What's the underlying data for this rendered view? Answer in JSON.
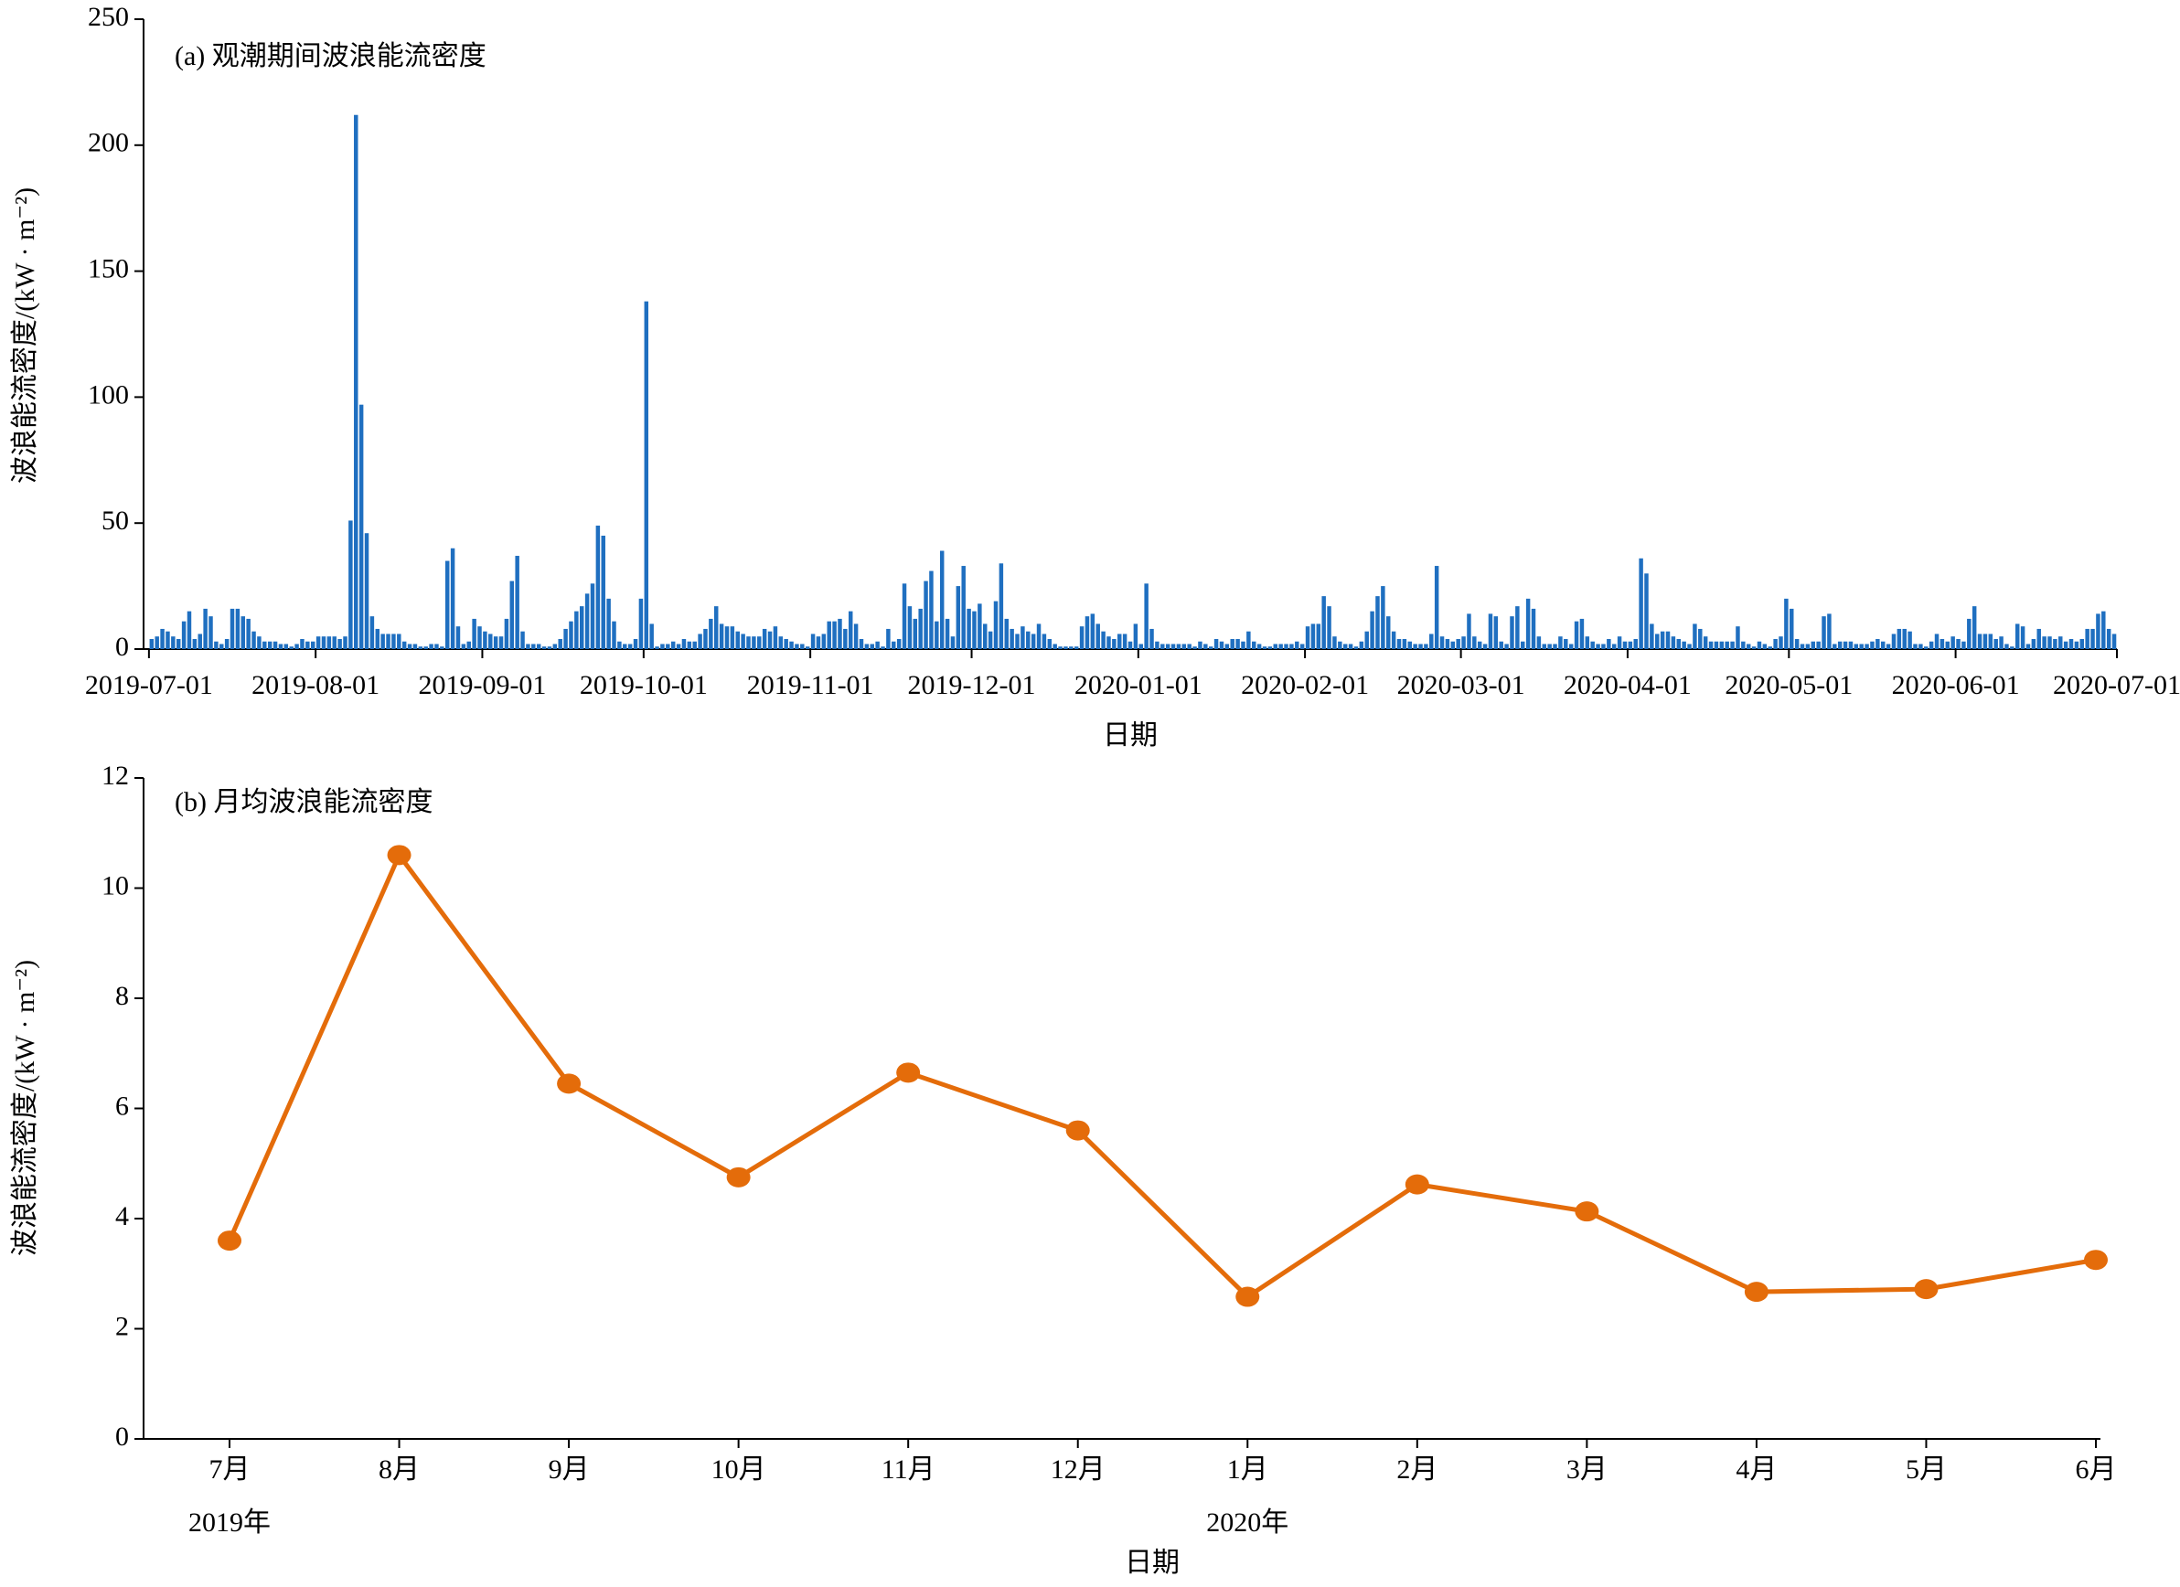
{
  "chart_data": [
    {
      "type": "bar",
      "title": "(a) 观潮期间波浪能流密度",
      "x_label": "日期",
      "y_label": "波浪能流密度/(kW · m⁻²)",
      "color": "#1f6fc0",
      "xlim": [
        "2019-06-30",
        "2020-07-01"
      ],
      "xticks": [
        "2019-07-01",
        "2019-08-01",
        "2019-09-01",
        "2019-10-01",
        "2019-11-01",
        "2019-12-01",
        "2020-01-01",
        "2020-02-01",
        "2020-03-01",
        "2020-04-01",
        "2020-05-01",
        "2020-06-01",
        "2020-07-01"
      ],
      "ylim": [
        0,
        250
      ],
      "yticks": [
        0,
        50,
        100,
        150,
        200,
        250
      ],
      "x": [
        "2019-07-01",
        "2019-07-02",
        "2019-07-03",
        "2019-07-04",
        "2019-07-05",
        "2019-07-06",
        "2019-07-07",
        "2019-07-08",
        "2019-07-09",
        "2019-07-10",
        "2019-07-11",
        "2019-07-12",
        "2019-07-13",
        "2019-07-14",
        "2019-07-15",
        "2019-07-16",
        "2019-07-17",
        "2019-07-18",
        "2019-07-19",
        "2019-07-20",
        "2019-07-21",
        "2019-07-22",
        "2019-07-23",
        "2019-07-24",
        "2019-07-25",
        "2019-07-26",
        "2019-07-27",
        "2019-07-28",
        "2019-07-29",
        "2019-07-30",
        "2019-07-31",
        "2019-08-01",
        "2019-08-02",
        "2019-08-03",
        "2019-08-04",
        "2019-08-05",
        "2019-08-06",
        "2019-08-07",
        "2019-08-08",
        "2019-08-09",
        "2019-08-10",
        "2019-08-11",
        "2019-08-12",
        "2019-08-13",
        "2019-08-14",
        "2019-08-15",
        "2019-08-16",
        "2019-08-17",
        "2019-08-18",
        "2019-08-19",
        "2019-08-20",
        "2019-08-21",
        "2019-08-22",
        "2019-08-23",
        "2019-08-24",
        "2019-08-25",
        "2019-08-26",
        "2019-08-27",
        "2019-08-28",
        "2019-08-29",
        "2019-08-30",
        "2019-08-31",
        "2019-09-01",
        "2019-09-02",
        "2019-09-03",
        "2019-09-04",
        "2019-09-05",
        "2019-09-06",
        "2019-09-07",
        "2019-09-08",
        "2019-09-09",
        "2019-09-10",
        "2019-09-11",
        "2019-09-12",
        "2019-09-13",
        "2019-09-14",
        "2019-09-15",
        "2019-09-16",
        "2019-09-17",
        "2019-09-18",
        "2019-09-19",
        "2019-09-20",
        "2019-09-21",
        "2019-09-22",
        "2019-09-23",
        "2019-09-24",
        "2019-09-25",
        "2019-09-26",
        "2019-09-27",
        "2019-09-28",
        "2019-09-29",
        "2019-09-30",
        "2019-10-01",
        "2019-10-02",
        "2019-10-03",
        "2019-10-04",
        "2019-10-05",
        "2019-10-06",
        "2019-10-07",
        "2019-10-08",
        "2019-10-09",
        "2019-10-10",
        "2019-10-11",
        "2019-10-12",
        "2019-10-13",
        "2019-10-14",
        "2019-10-15",
        "2019-10-16",
        "2019-10-17",
        "2019-10-18",
        "2019-10-19",
        "2019-10-20",
        "2019-10-21",
        "2019-10-22",
        "2019-10-23",
        "2019-10-24",
        "2019-10-25",
        "2019-10-26",
        "2019-10-27",
        "2019-10-28",
        "2019-10-29",
        "2019-10-30",
        "2019-10-31",
        "2019-11-01",
        "2019-11-02",
        "2019-11-03",
        "2019-11-04",
        "2019-11-05",
        "2019-11-06",
        "2019-11-07",
        "2019-11-08",
        "2019-11-09",
        "2019-11-10",
        "2019-11-11",
        "2019-11-12",
        "2019-11-13",
        "2019-11-14",
        "2019-11-15",
        "2019-11-16",
        "2019-11-17",
        "2019-11-18",
        "2019-11-19",
        "2019-11-20",
        "2019-11-21",
        "2019-11-22",
        "2019-11-23",
        "2019-11-24",
        "2019-11-25",
        "2019-11-26",
        "2019-11-27",
        "2019-11-28",
        "2019-11-29",
        "2019-11-30",
        "2019-12-01",
        "2019-12-02",
        "2019-12-03",
        "2019-12-04",
        "2019-12-05",
        "2019-12-06",
        "2019-12-07",
        "2019-12-08",
        "2019-12-09",
        "2019-12-10",
        "2019-12-11",
        "2019-12-12",
        "2019-12-13",
        "2019-12-14",
        "2019-12-15",
        "2019-12-16",
        "2019-12-17",
        "2019-12-18",
        "2019-12-19",
        "2019-12-20",
        "2019-12-21",
        "2019-12-22",
        "2019-12-23",
        "2019-12-24",
        "2019-12-25",
        "2019-12-26",
        "2019-12-27",
        "2019-12-28",
        "2019-12-29",
        "2019-12-30",
        "2019-12-31",
        "2020-01-01",
        "2020-01-02",
        "2020-01-03",
        "2020-01-04",
        "2020-01-05",
        "2020-01-06",
        "2020-01-07",
        "2020-01-08",
        "2020-01-09",
        "2020-01-10",
        "2020-01-11",
        "2020-01-12",
        "2020-01-13",
        "2020-01-14",
        "2020-01-15",
        "2020-01-16",
        "2020-01-17",
        "2020-01-18",
        "2020-01-19",
        "2020-01-20",
        "2020-01-21",
        "2020-01-22",
        "2020-01-23",
        "2020-01-24",
        "2020-01-25",
        "2020-01-26",
        "2020-01-27",
        "2020-01-28",
        "2020-01-29",
        "2020-01-30",
        "2020-01-31",
        "2020-02-01",
        "2020-02-02",
        "2020-02-03",
        "2020-02-04",
        "2020-02-05",
        "2020-02-06",
        "2020-02-07",
        "2020-02-08",
        "2020-02-09",
        "2020-02-10",
        "2020-02-11",
        "2020-02-12",
        "2020-02-13",
        "2020-02-14",
        "2020-02-15",
        "2020-02-16",
        "2020-02-17",
        "2020-02-18",
        "2020-02-19",
        "2020-02-20",
        "2020-02-21",
        "2020-02-22",
        "2020-02-23",
        "2020-02-24",
        "2020-02-25",
        "2020-02-26",
        "2020-02-27",
        "2020-02-28",
        "2020-02-29",
        "2020-03-01",
        "2020-03-02",
        "2020-03-03",
        "2020-03-04",
        "2020-03-05",
        "2020-03-06",
        "2020-03-07",
        "2020-03-08",
        "2020-03-09",
        "2020-03-10",
        "2020-03-11",
        "2020-03-12",
        "2020-03-13",
        "2020-03-14",
        "2020-03-15",
        "2020-03-16",
        "2020-03-17",
        "2020-03-18",
        "2020-03-19",
        "2020-03-20",
        "2020-03-21",
        "2020-03-22",
        "2020-03-23",
        "2020-03-24",
        "2020-03-25",
        "2020-03-26",
        "2020-03-27",
        "2020-03-28",
        "2020-03-29",
        "2020-03-30",
        "2020-03-31",
        "2020-04-01",
        "2020-04-02",
        "2020-04-03",
        "2020-04-04",
        "2020-04-05",
        "2020-04-06",
        "2020-04-07",
        "2020-04-08",
        "2020-04-09",
        "2020-04-10",
        "2020-04-11",
        "2020-04-12",
        "2020-04-13",
        "2020-04-14",
        "2020-04-15",
        "2020-04-16",
        "2020-04-17",
        "2020-04-18",
        "2020-04-19",
        "2020-04-20",
        "2020-04-21",
        "2020-04-22",
        "2020-04-23",
        "2020-04-24",
        "2020-04-25",
        "2020-04-26",
        "2020-04-27",
        "2020-04-28",
        "2020-04-29",
        "2020-04-30",
        "2020-05-01",
        "2020-05-02",
        "2020-05-03",
        "2020-05-04",
        "2020-05-05",
        "2020-05-06",
        "2020-05-07",
        "2020-05-08",
        "2020-05-09",
        "2020-05-10",
        "2020-05-11",
        "2020-05-12",
        "2020-05-13",
        "2020-05-14",
        "2020-05-15",
        "2020-05-16",
        "2020-05-17",
        "2020-05-18",
        "2020-05-19",
        "2020-05-20",
        "2020-05-21",
        "2020-05-22",
        "2020-05-23",
        "2020-05-24",
        "2020-05-25",
        "2020-05-26",
        "2020-05-27",
        "2020-05-28",
        "2020-05-29",
        "2020-05-30",
        "2020-05-31",
        "2020-06-01",
        "2020-06-02",
        "2020-06-03",
        "2020-06-04",
        "2020-06-05",
        "2020-06-06",
        "2020-06-07",
        "2020-06-08",
        "2020-06-09",
        "2020-06-10",
        "2020-06-11",
        "2020-06-12",
        "2020-06-13",
        "2020-06-14",
        "2020-06-15",
        "2020-06-16",
        "2020-06-17",
        "2020-06-18",
        "2020-06-19",
        "2020-06-20",
        "2020-06-21",
        "2020-06-22",
        "2020-06-23",
        "2020-06-24",
        "2020-06-25",
        "2020-06-26",
        "2020-06-27",
        "2020-06-28",
        "2020-06-29",
        "2020-06-30"
      ],
      "values": [
        4,
        5,
        8,
        7,
        5,
        4,
        11,
        15,
        4,
        6,
        16,
        13,
        3,
        2,
        4,
        16,
        16,
        13,
        12,
        7,
        5,
        3,
        3,
        3,
        2,
        2,
        1,
        2,
        4,
        3,
        3,
        5,
        5,
        5,
        5,
        4,
        5,
        51,
        212,
        97,
        46,
        13,
        8,
        6,
        6,
        6,
        6,
        3,
        2,
        2,
        1,
        1,
        2,
        2,
        1,
        35,
        40,
        9,
        2,
        3,
        12,
        9,
        7,
        6,
        5,
        5,
        12,
        27,
        37,
        7,
        2,
        2,
        2,
        1,
        1,
        2,
        4,
        8,
        11,
        15,
        17,
        22,
        26,
        49,
        45,
        20,
        11,
        3,
        2,
        2,
        4,
        20,
        138,
        10,
        1,
        2,
        2,
        3,
        2,
        4,
        3,
        3,
        6,
        8,
        12,
        17,
        10,
        9,
        9,
        7,
        6,
        5,
        5,
        5,
        8,
        7,
        9,
        5,
        4,
        3,
        2,
        2,
        1,
        6,
        5,
        6,
        11,
        11,
        12,
        8,
        15,
        10,
        4,
        2,
        2,
        3,
        1,
        8,
        3,
        4,
        26,
        17,
        12,
        16,
        27,
        31,
        11,
        39,
        12,
        5,
        25,
        33,
        16,
        15,
        18,
        10,
        7,
        19,
        34,
        12,
        8,
        6,
        9,
        7,
        6,
        10,
        6,
        4,
        2,
        1,
        1,
        1,
        1,
        9,
        13,
        14,
        10,
        7,
        5,
        4,
        6,
        6,
        3,
        10,
        2,
        26,
        8,
        3,
        2,
        2,
        2,
        2,
        2,
        2,
        1,
        3,
        2,
        1,
        4,
        3,
        2,
        4,
        4,
        3,
        7,
        3,
        2,
        1,
        1,
        2,
        2,
        2,
        2,
        3,
        2,
        9,
        10,
        10,
        21,
        17,
        5,
        3,
        2,
        2,
        1,
        3,
        7,
        15,
        21,
        25,
        13,
        7,
        4,
        4,
        3,
        2,
        2,
        2,
        6,
        33,
        5,
        4,
        3,
        4,
        5,
        14,
        5,
        3,
        2,
        14,
        13,
        3,
        2,
        13,
        17,
        3,
        20,
        16,
        5,
        2,
        2,
        2,
        5,
        4,
        2,
        11,
        12,
        5,
        3,
        2,
        2,
        4,
        2,
        5,
        3,
        3,
        4,
        36,
        30,
        10,
        6,
        7,
        7,
        5,
        4,
        3,
        2,
        10,
        8,
        5,
        3,
        3,
        3,
        3,
        3,
        9,
        3,
        2,
        1,
        3,
        2,
        1,
        4,
        5,
        20,
        16,
        4,
        2,
        2,
        3,
        3,
        13,
        14,
        2,
        3,
        3,
        3,
        2,
        2,
        2,
        3,
        4,
        3,
        2,
        6,
        8,
        8,
        7,
        2,
        2,
        1,
        3,
        6,
        4,
        3,
        5,
        4,
        3,
        12,
        17,
        6,
        6,
        6,
        4,
        5,
        2,
        1,
        10,
        9,
        2,
        4,
        8,
        5,
        5,
        4,
        5,
        3,
        4,
        3,
        4,
        8,
        8,
        14,
        15,
        8,
        6
      ]
    },
    {
      "type": "line",
      "title": "(b) 月均波浪能流密度",
      "x_label": "日期",
      "y_label": "波浪能流密度/(kW · m⁻²)",
      "color": "#e46c0a",
      "categories": [
        [
          "7月",
          "2019年"
        ],
        [
          "8月",
          null
        ],
        [
          "9月",
          null
        ],
        [
          "10月",
          null
        ],
        [
          "11月",
          null
        ],
        [
          "12月",
          null
        ],
        [
          "1月",
          "2020年"
        ],
        [
          "2月",
          null
        ],
        [
          "3月",
          null
        ],
        [
          "4月",
          null
        ],
        [
          "5月",
          null
        ],
        [
          "6月",
          null
        ]
      ],
      "values": [
        3.6,
        10.6,
        6.45,
        4.75,
        6.65,
        5.6,
        2.58,
        4.62,
        4.13,
        2.67,
        2.72,
        3.25
      ],
      "ylim": [
        0,
        12
      ],
      "yticks": [
        0,
        2,
        4,
        6,
        8,
        10,
        12
      ]
    }
  ]
}
